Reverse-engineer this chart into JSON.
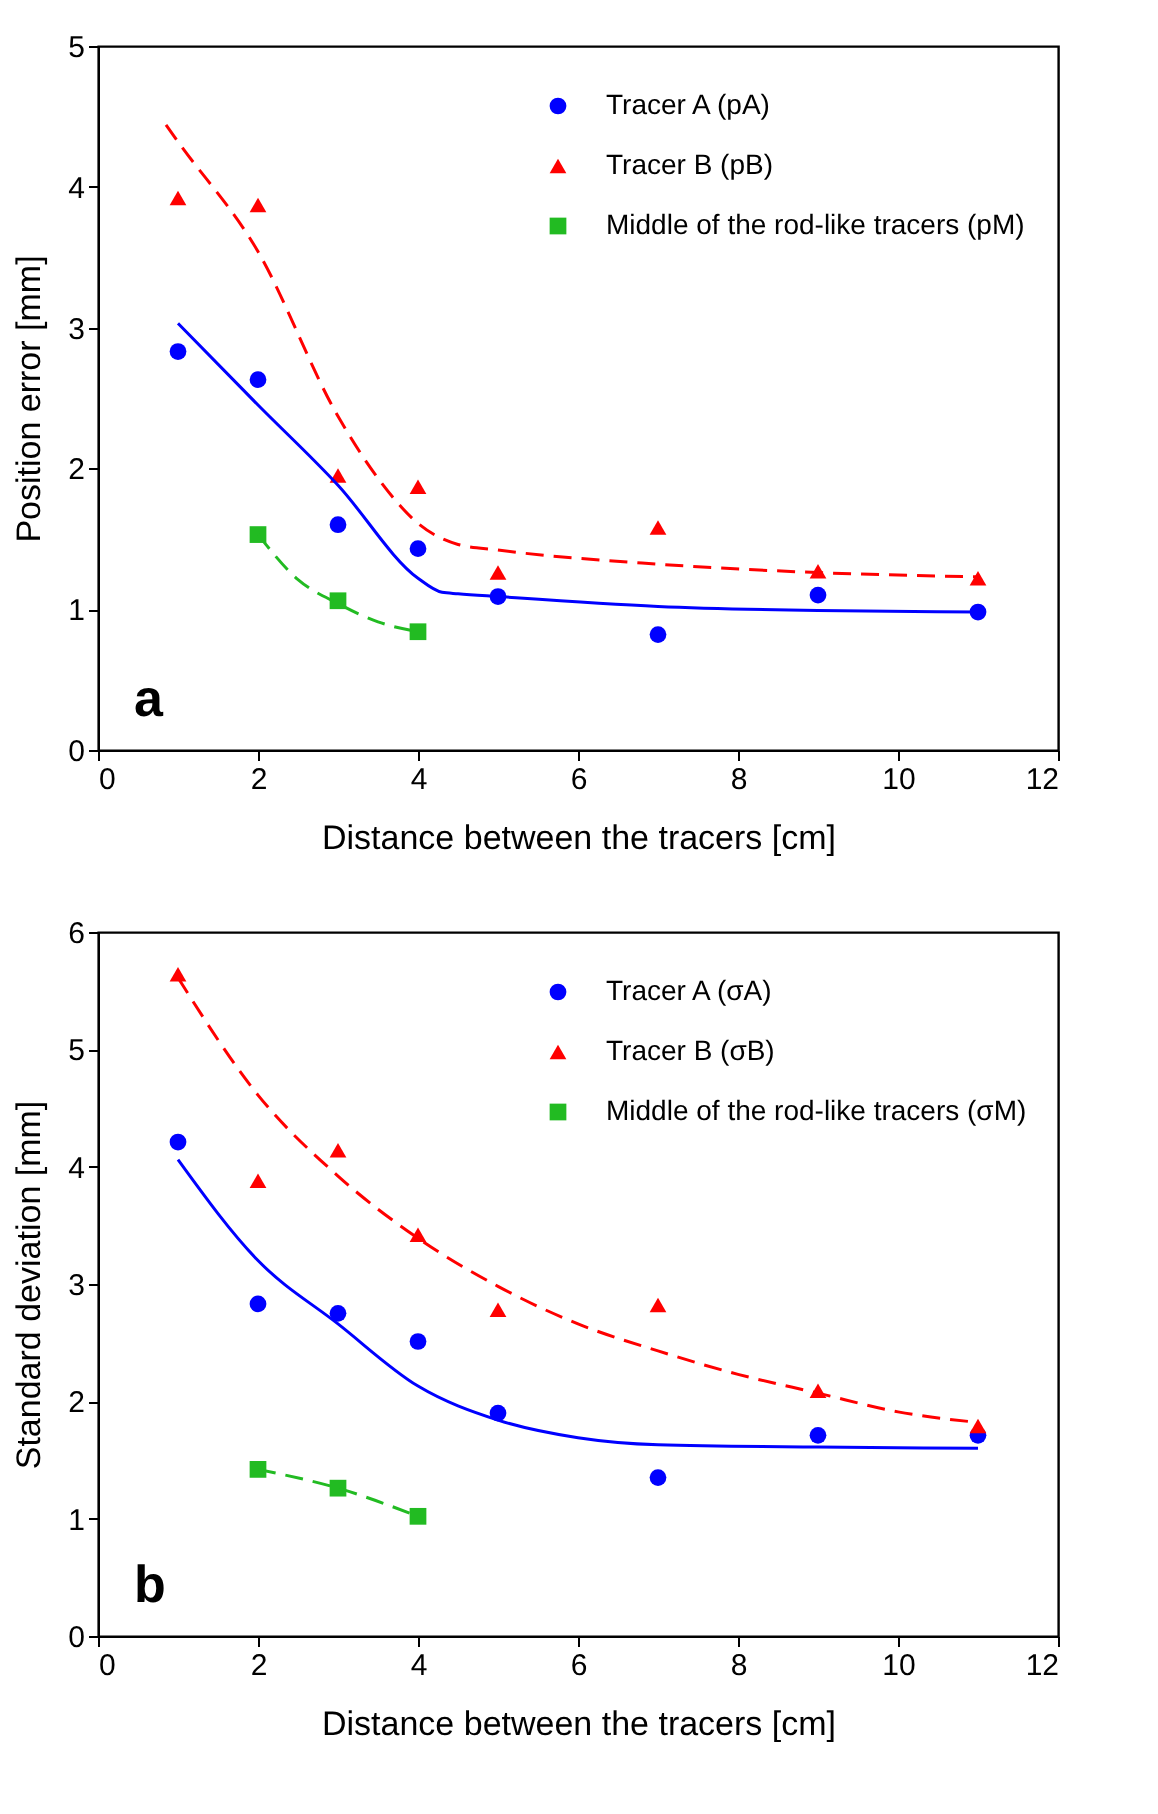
{
  "chart_data": [
    {
      "type": "scatter",
      "xlabel": "Distance between the tracers [cm]",
      "ylabel": "Position error [mm]",
      "xlim": [
        0,
        12
      ],
      "xticks": [
        0,
        2,
        4,
        6,
        8,
        10,
        12
      ],
      "ylim": [
        0,
        5
      ],
      "yticks": [
        0,
        1,
        2,
        3,
        4,
        5
      ],
      "grid": false,
      "legend": "top right",
      "annotations": [
        "a"
      ],
      "series": [
        {
          "name": "Tracer A (pA)",
          "color": "#0000ff",
          "marker": "circle",
          "x": [
            1,
            2,
            3,
            4,
            5,
            7,
            9,
            11
          ],
          "values": [
            2.83,
            2.63,
            1.6,
            1.43,
            1.09,
            0.82,
            1.1,
            0.98
          ]
        },
        {
          "name": "Tracer B (pB)",
          "color": "#ff0000",
          "marker": "triangle",
          "x": [
            1,
            2,
            3,
            4,
            5,
            7,
            9,
            11
          ],
          "values": [
            3.92,
            3.87,
            1.95,
            1.87,
            1.26,
            1.58,
            1.27,
            1.22
          ]
        },
        {
          "name": "Middle of the rod-like tracers (pM)",
          "color": "#22bb22",
          "marker": "square",
          "x": [
            2,
            3,
            4
          ],
          "values": [
            1.53,
            1.06,
            0.84
          ]
        },
        {
          "type": "line",
          "color": "#0000ff",
          "line_style": "solid",
          "x": [
            1,
            2,
            3,
            4,
            4.3,
            4.5,
            5,
            7,
            9,
            11
          ],
          "values": [
            3.03,
            2.45,
            1.88,
            1.22,
            1.12,
            1.11,
            1.09,
            1.02,
            0.99,
            0.98
          ]
        },
        {
          "type": "line",
          "color": "#ff0000",
          "line_style": "dashed",
          "x": [
            0.85,
            1,
            2,
            3,
            3.5,
            4,
            4.5,
            5,
            7,
            9,
            11
          ],
          "values": [
            4.44,
            4.32,
            3.54,
            2.37,
            1.93,
            1.61,
            1.46,
            1.42,
            1.32,
            1.26,
            1.23
          ]
        },
        {
          "type": "line",
          "color": "#22bb22",
          "line_style": "dashed",
          "x": [
            2,
            2.5,
            3,
            3.5,
            4
          ],
          "values": [
            1.53,
            1.21,
            1.04,
            0.91,
            0.84
          ]
        }
      ]
    },
    {
      "type": "scatter",
      "xlabel": "Distance between the tracers [cm]",
      "ylabel": "Standard deviation [mm]",
      "xlim": [
        0,
        12
      ],
      "xticks": [
        0,
        2,
        4,
        6,
        8,
        10,
        12
      ],
      "ylim": [
        0,
        6
      ],
      "yticks": [
        0,
        1,
        2,
        3,
        4,
        5,
        6
      ],
      "grid": false,
      "legend": "top right",
      "annotations": [
        "b"
      ],
      "series": [
        {
          "name": "Tracer A (σA)",
          "color": "#0000ff",
          "marker": "circle",
          "x": [
            1,
            2,
            3,
            4,
            5,
            7,
            9,
            11
          ],
          "values": [
            4.21,
            2.83,
            2.75,
            2.51,
            1.9,
            1.35,
            1.71,
            1.71
          ]
        },
        {
          "name": "Tracer B (σB)",
          "color": "#ff0000",
          "marker": "triangle",
          "x": [
            1,
            2,
            3,
            4,
            5,
            7,
            9,
            11
          ],
          "values": [
            5.64,
            3.88,
            4.14,
            3.42,
            2.78,
            2.82,
            2.09,
            1.79
          ]
        },
        {
          "name": "Middle of the rod-like tracers (σM)",
          "color": "#22bb22",
          "marker": "square",
          "x": [
            2,
            3,
            4
          ],
          "values": [
            1.42,
            1.26,
            1.02
          ]
        },
        {
          "type": "line",
          "color": "#0000ff",
          "line_style": "solid",
          "x": [
            1,
            2,
            3,
            4,
            5,
            6,
            7,
            9,
            11
          ],
          "values": [
            4.06,
            3.2,
            2.66,
            2.13,
            1.84,
            1.69,
            1.63,
            1.61,
            1.6
          ]
        },
        {
          "type": "line",
          "color": "#ff0000",
          "line_style": "dashed",
          "x": [
            1,
            2,
            3,
            4,
            5,
            6,
            7,
            8,
            9,
            10,
            11
          ],
          "values": [
            5.61,
            4.61,
            3.92,
            3.39,
            2.98,
            2.66,
            2.43,
            2.23,
            2.07,
            1.91,
            1.82
          ]
        },
        {
          "type": "line",
          "color": "#22bb22",
          "line_style": "dashed",
          "x": [
            2,
            3,
            4
          ],
          "values": [
            1.42,
            1.26,
            1.02
          ]
        }
      ]
    }
  ]
}
